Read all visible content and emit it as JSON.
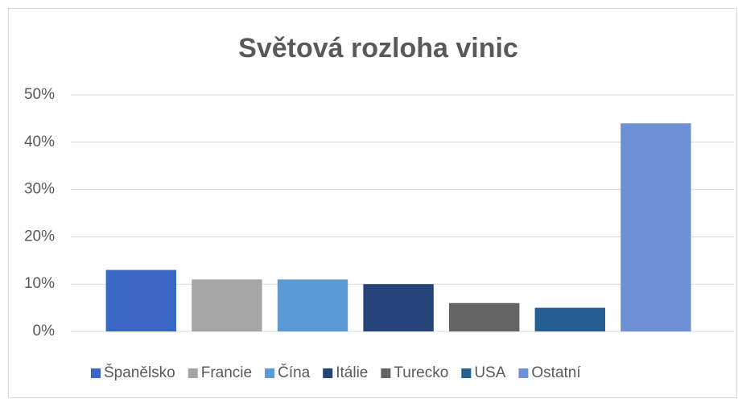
{
  "chart_data": {
    "type": "bar",
    "title": "Světová rozloha vinic",
    "categories": [
      "Španělsko",
      "Francie",
      "Čína",
      "Itálie",
      "Turecko",
      "USA",
      "Ostatní"
    ],
    "values": [
      13,
      11,
      11,
      10,
      6,
      5,
      44
    ],
    "colors": [
      "#3a67c6",
      "#a5a5a5",
      "#5b9bd5",
      "#26447a",
      "#646464",
      "#255e91",
      "#6e91d6"
    ],
    "ylim": [
      0,
      50
    ],
    "yticks": [
      {
        "value": 0,
        "label": "0%"
      },
      {
        "value": 10,
        "label": "10%"
      },
      {
        "value": 20,
        "label": "20%"
      },
      {
        "value": 30,
        "label": "30%"
      },
      {
        "value": 40,
        "label": "40%"
      },
      {
        "value": 50,
        "label": "50%"
      }
    ],
    "grid": true,
    "legend": "bottom"
  }
}
